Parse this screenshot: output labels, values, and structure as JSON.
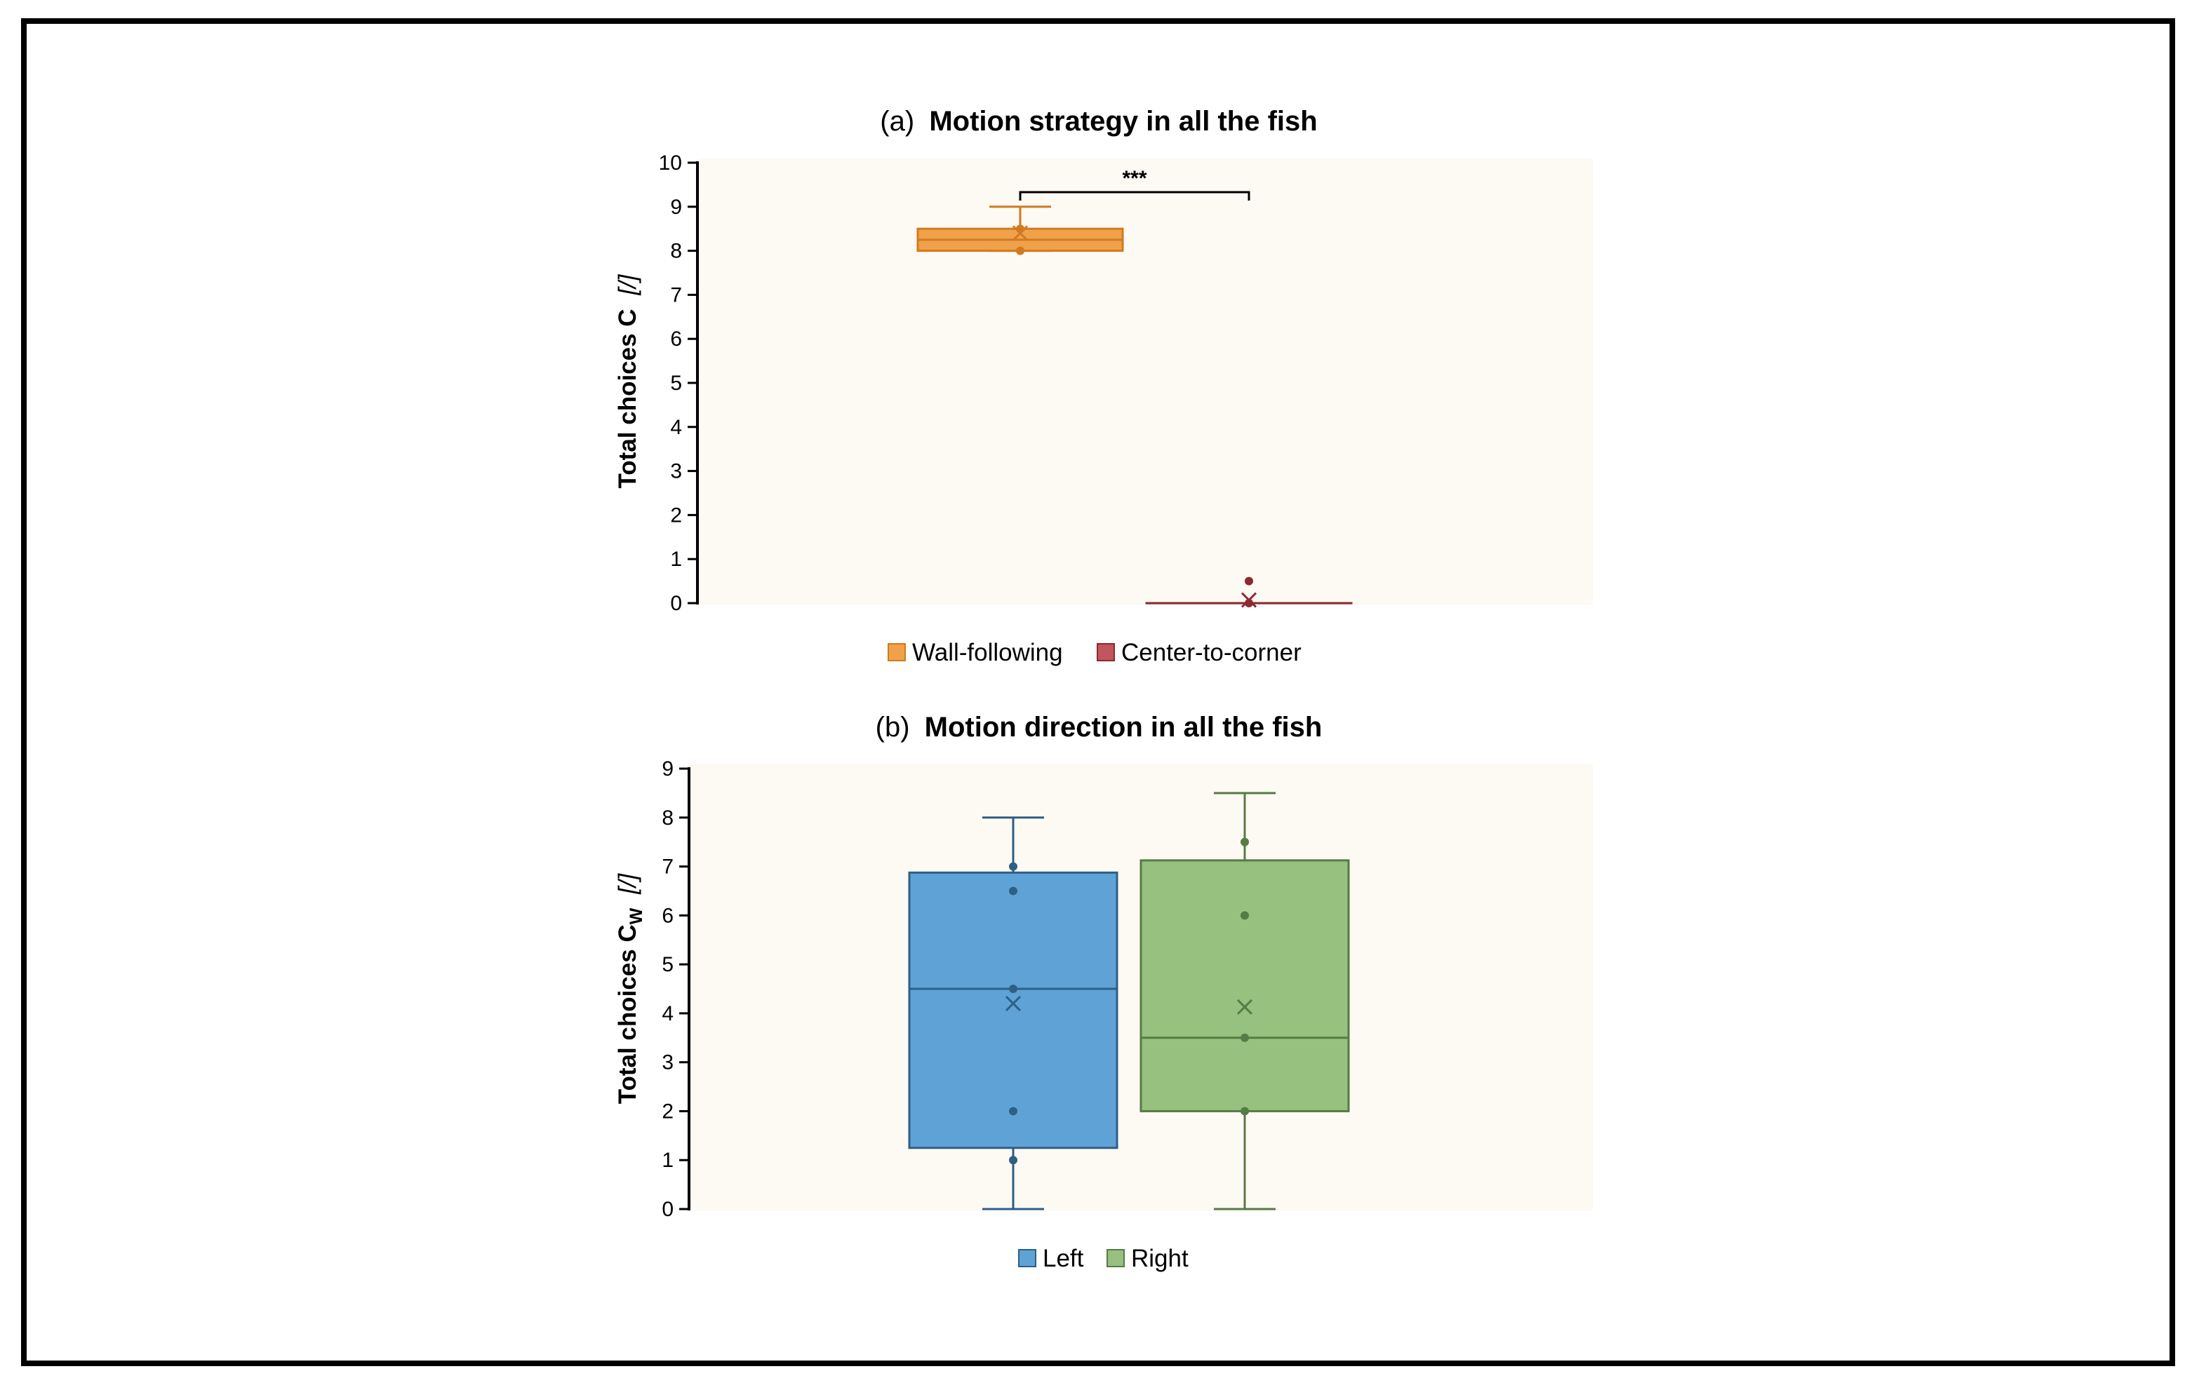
{
  "chart_data": [
    {
      "type": "box",
      "title_prefix": "(a)",
      "title": "Motion strategy in all the fish",
      "ylabel_main": "Total choices C",
      "ylabel_unit": "[/]",
      "ylim": [
        0,
        10
      ],
      "yticks": [
        0,
        1,
        2,
        3,
        4,
        5,
        6,
        7,
        8,
        9,
        10
      ],
      "significance": "***",
      "series": [
        {
          "name": "Wall-following",
          "color": "#f0a14a",
          "stroke": "#d07a21",
          "q1": 8,
          "median": 8.25,
          "q3": 8.5,
          "whisker_low": 8,
          "whisker_high": 9,
          "mean": 8.4,
          "points": [
            8,
            8.5
          ]
        },
        {
          "name": "Center-to-corner",
          "color": "#c1565f",
          "stroke": "#8b2a31",
          "q1": 0,
          "median": 0,
          "q3": 0,
          "whisker_low": 0,
          "whisker_high": 0,
          "mean": 0.07,
          "points": [
            0.5,
            0
          ]
        }
      ]
    },
    {
      "type": "box",
      "title_prefix": "(b)",
      "title": "Motion direction in all the fish",
      "ylabel_main": "Total choices C",
      "ylabel_sub": "W",
      "ylabel_unit": "[/]",
      "ylim": [
        0,
        9
      ],
      "yticks": [
        0,
        1,
        2,
        3,
        4,
        5,
        6,
        7,
        8,
        9
      ],
      "series": [
        {
          "name": "Left",
          "color": "#5fa3d6",
          "stroke": "#2e5f85",
          "q1": 1.25,
          "median": 4.5,
          "q3": 6.875,
          "whisker_low": 0,
          "whisker_high": 8,
          "mean": 4.2,
          "points": [
            7,
            6.5,
            4.5,
            2,
            1
          ]
        },
        {
          "name": "Right",
          "color": "#96c17e",
          "stroke": "#567b45",
          "q1": 2,
          "median": 3.5,
          "q3": 7.125,
          "whisker_low": 0,
          "whisker_high": 8.5,
          "mean": 4.13,
          "points": [
            7.5,
            6,
            3.5,
            2
          ]
        }
      ]
    }
  ]
}
